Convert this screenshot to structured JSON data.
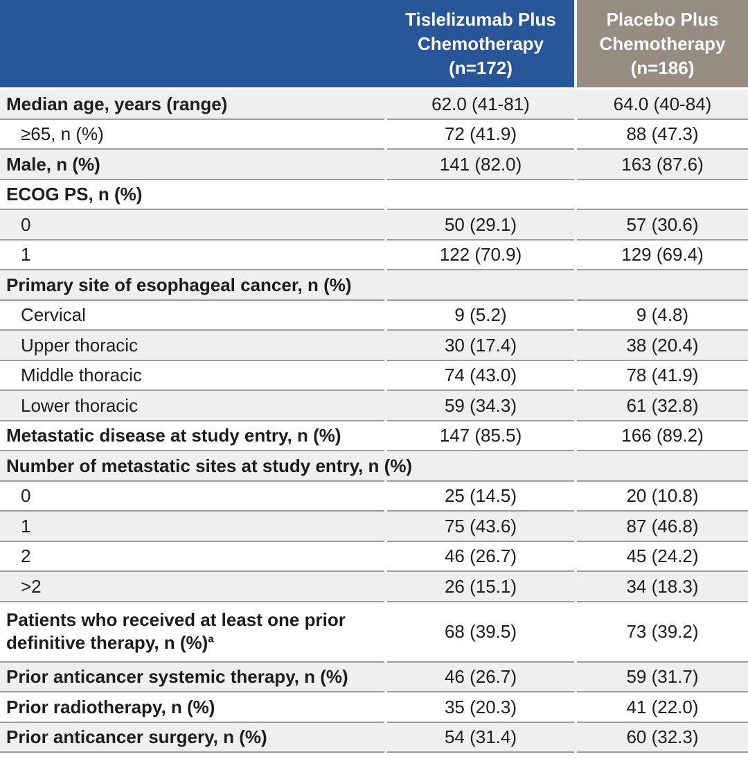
{
  "colors": {
    "header_blue": "#275799",
    "header_taupe": "#978C82",
    "row_shade": "#EFEFEF",
    "row_border": "#9C9C9C",
    "text": "#1D1D1D",
    "header_text": "#FFFFFF"
  },
  "table": {
    "columns": [
      {
        "label": ""
      },
      {
        "label": "Tislelizumab Plus\nChemotherapy\n(n=172)"
      },
      {
        "label": "Placebo Plus\nChemotherapy\n(n=186)"
      }
    ],
    "rows": [
      {
        "label": "Median age, years (range)",
        "sup": "",
        "bold": true,
        "indent": false,
        "wrap": false,
        "shaded": true,
        "values": [
          "62.0 (41-81)",
          "64.0 (40-84)"
        ]
      },
      {
        "label": "≥65, n (%)",
        "sup": "",
        "bold": false,
        "indent": true,
        "wrap": false,
        "shaded": false,
        "values": [
          "72 (41.9)",
          "88 (47.3)"
        ]
      },
      {
        "label": "Male, n (%)",
        "sup": "",
        "bold": true,
        "indent": false,
        "wrap": false,
        "shaded": true,
        "values": [
          "141 (82.0)",
          "163 (87.6)"
        ]
      },
      {
        "label": "ECOG PS, n (%)",
        "sup": "",
        "bold": true,
        "indent": false,
        "wrap": false,
        "shaded": false,
        "values": [
          "",
          ""
        ]
      },
      {
        "label": "0",
        "sup": "",
        "bold": false,
        "indent": true,
        "wrap": false,
        "shaded": true,
        "values": [
          "50 (29.1)",
          "57 (30.6)"
        ]
      },
      {
        "label": "1",
        "sup": "",
        "bold": false,
        "indent": true,
        "wrap": false,
        "shaded": false,
        "values": [
          "122 (70.9)",
          "129 (69.4)"
        ]
      },
      {
        "label": "Primary site of esophageal cancer, n (%)",
        "sup": "",
        "bold": true,
        "indent": false,
        "wrap": false,
        "shaded": true,
        "values": [
          "",
          ""
        ]
      },
      {
        "label": "Cervical",
        "sup": "",
        "bold": false,
        "indent": true,
        "wrap": false,
        "shaded": false,
        "values": [
          "9 (5.2)",
          "9 (4.8)"
        ]
      },
      {
        "label": "Upper thoracic",
        "sup": "",
        "bold": false,
        "indent": true,
        "wrap": false,
        "shaded": true,
        "values": [
          "30 (17.4)",
          "38 (20.4)"
        ]
      },
      {
        "label": "Middle thoracic",
        "sup": "",
        "bold": false,
        "indent": true,
        "wrap": false,
        "shaded": false,
        "values": [
          "74 (43.0)",
          "78 (41.9)"
        ]
      },
      {
        "label": "Lower thoracic",
        "sup": "",
        "bold": false,
        "indent": true,
        "wrap": false,
        "shaded": true,
        "values": [
          "59 (34.3)",
          "61 (32.8)"
        ]
      },
      {
        "label": "Metastatic disease at study entry, n (%)",
        "sup": "",
        "bold": true,
        "indent": false,
        "wrap": false,
        "shaded": false,
        "values": [
          "147 (85.5)",
          "166 (89.2)"
        ]
      },
      {
        "label": "Number of metastatic sites at study entry, n (%)",
        "sup": "",
        "bold": true,
        "indent": false,
        "wrap": false,
        "shaded": true,
        "values": [
          "",
          ""
        ]
      },
      {
        "label": "0",
        "sup": "",
        "bold": false,
        "indent": true,
        "wrap": false,
        "shaded": false,
        "values": [
          "25 (14.5)",
          "20 (10.8)"
        ]
      },
      {
        "label": "1",
        "sup": "",
        "bold": false,
        "indent": true,
        "wrap": false,
        "shaded": true,
        "values": [
          "75 (43.6)",
          "87 (46.8)"
        ]
      },
      {
        "label": "2",
        "sup": "",
        "bold": false,
        "indent": true,
        "wrap": false,
        "shaded": false,
        "values": [
          "46 (26.7)",
          "45 (24.2)"
        ]
      },
      {
        "label": ">2",
        "sup": "",
        "bold": false,
        "indent": true,
        "wrap": false,
        "shaded": true,
        "values": [
          "26 (15.1)",
          "34 (18.3)"
        ]
      },
      {
        "label": "Patients who received at least one prior definitive therapy, n (%)",
        "sup": "a",
        "bold": true,
        "indent": false,
        "wrap": true,
        "shaded": false,
        "values": [
          "68 (39.5)",
          "73 (39.2)"
        ]
      },
      {
        "label": "Prior anticancer systemic therapy, n (%)",
        "sup": "",
        "bold": true,
        "indent": false,
        "wrap": false,
        "shaded": true,
        "values": [
          "46 (26.7)",
          "59 (31.7)"
        ]
      },
      {
        "label": "Prior radiotherapy, n (%)",
        "sup": "",
        "bold": true,
        "indent": false,
        "wrap": false,
        "shaded": false,
        "values": [
          "35 (20.3)",
          "41 (22.0)"
        ]
      },
      {
        "label": "Prior anticancer surgery, n (%)",
        "sup": "",
        "bold": true,
        "indent": false,
        "wrap": false,
        "shaded": true,
        "values": [
          "54 (31.4)",
          "60 (32.3)"
        ]
      }
    ]
  }
}
